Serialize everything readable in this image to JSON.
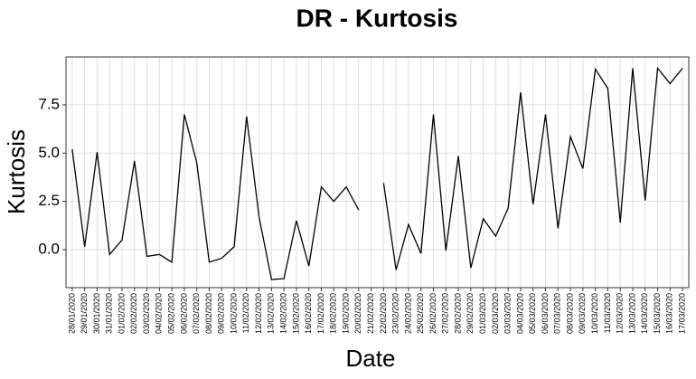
{
  "chart_data": {
    "type": "line",
    "title": "DR - Kurtosis",
    "x_label": "Date",
    "y_label": "Kurtosis",
    "categories": [
      "28/01/2020",
      "29/01/2020",
      "30/01/2020",
      "31/01/2020",
      "01/02/2020",
      "02/02/2020",
      "03/02/2020",
      "04/02/2020",
      "05/02/2020",
      "06/02/2020",
      "07/02/2020",
      "08/02/2020",
      "09/02/2020",
      "10/02/2020",
      "11/02/2020",
      "12/02/2020",
      "13/02/2020",
      "14/02/2020",
      "15/02/2020",
      "16/02/2020",
      "17/02/2020",
      "18/02/2020",
      "19/02/2020",
      "20/02/2020",
      "21/02/2020",
      "22/02/2020",
      "23/02/2020",
      "24/02/2020",
      "25/02/2020",
      "26/02/2020",
      "27/02/2020",
      "28/02/2020",
      "29/02/2020",
      "01/03/2020",
      "02/03/2020",
      "03/03/2020",
      "04/03/2020",
      "05/03/2020",
      "06/03/2020",
      "07/03/2020",
      "08/03/2020",
      "09/03/2020",
      "10/03/2020",
      "11/03/2020",
      "12/03/2020",
      "13/03/2020",
      "14/03/2020",
      "15/03/2020",
      "16/03/2020",
      "17/03/2020"
    ],
    "values": [
      5.2,
      0.15,
      5.05,
      -0.25,
      0.5,
      4.6,
      -0.35,
      -0.25,
      -0.65,
      7.0,
      4.5,
      -0.65,
      -0.45,
      0.15,
      6.9,
      1.7,
      -1.55,
      -1.5,
      1.5,
      -0.85,
      3.25,
      2.5,
      3.25,
      2.05,
      null,
      3.45,
      -1.05,
      1.3,
      -0.2,
      7.0,
      -0.05,
      4.85,
      -0.95,
      1.6,
      0.7,
      2.15,
      8.15,
      2.35,
      7.0,
      1.1,
      5.85,
      4.2,
      9.35,
      8.35,
      1.4,
      9.4,
      2.55,
      9.4,
      8.6,
      9.4
    ],
    "color": "#000000",
    "ylim": [
      -1.97,
      9.98
    ],
    "yticks": [
      {
        "value": 0,
        "label": "0.0"
      },
      {
        "value": 2.5,
        "label": "2.5"
      },
      {
        "value": 5,
        "label": "5.0"
      },
      {
        "value": 7.5,
        "label": "7.5"
      }
    ],
    "grid": true
  }
}
